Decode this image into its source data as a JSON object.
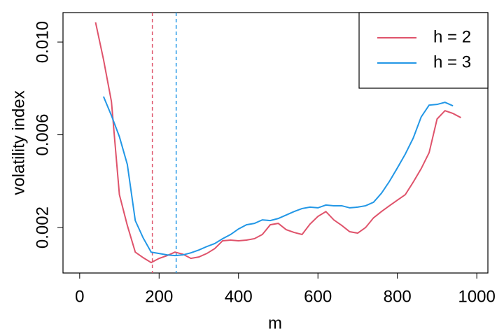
{
  "chart_data": {
    "type": "line",
    "xlabel": "m",
    "ylabel": "volatility index",
    "xlim": [
      -42,
      1028
    ],
    "ylim": [
      4e-05,
      0.01127
    ],
    "xticks": [
      0,
      200,
      400,
      600,
      800,
      1000
    ],
    "yticks": [
      {
        "value": 0.002,
        "label": "0.002"
      },
      {
        "value": 0.006,
        "label": "0.006"
      },
      {
        "value": 0.01,
        "label": "0.010"
      }
    ],
    "legend": "top-right",
    "vlines": [
      {
        "value": 183,
        "color": "#DF536B"
      },
      {
        "value": 243,
        "color": "#2297E6"
      }
    ],
    "series": [
      {
        "name": "h = 2",
        "color": "#DF536B",
        "x": [
          40,
          60,
          80,
          100,
          120,
          140,
          160,
          180,
          200,
          220,
          240,
          260,
          280,
          300,
          320,
          340,
          360,
          380,
          400,
          420,
          440,
          460,
          480,
          500,
          520,
          540,
          560,
          580,
          600,
          620,
          640,
          660,
          680,
          700,
          720,
          740,
          760,
          780,
          800,
          820,
          840,
          860,
          880,
          900,
          920,
          940,
          960
        ],
        "values": [
          0.01085,
          0.00925,
          0.00743,
          0.00342,
          0.00209,
          0.00094,
          0.0007,
          0.00049,
          0.00067,
          0.00079,
          0.00094,
          0.00085,
          0.00067,
          0.00073,
          0.00088,
          0.00109,
          0.00143,
          0.00146,
          0.00143,
          0.00146,
          0.00152,
          0.0017,
          0.00212,
          0.00218,
          0.00191,
          0.00179,
          0.0017,
          0.00215,
          0.00248,
          0.00269,
          0.00233,
          0.00209,
          0.00182,
          0.00176,
          0.002,
          0.00242,
          0.00269,
          0.00294,
          0.00318,
          0.00342,
          0.00396,
          0.00454,
          0.00523,
          0.00668,
          0.00704,
          0.00692,
          0.00674
        ]
      },
      {
        "name": "h = 3",
        "color": "#2297E6",
        "x": [
          60,
          80,
          100,
          120,
          140,
          160,
          180,
          200,
          220,
          240,
          260,
          280,
          300,
          320,
          340,
          360,
          380,
          400,
          420,
          440,
          460,
          480,
          500,
          520,
          540,
          560,
          580,
          600,
          620,
          640,
          660,
          680,
          700,
          720,
          740,
          760,
          780,
          800,
          820,
          840,
          860,
          880,
          900,
          920,
          940
        ],
        "values": [
          0.00765,
          0.00683,
          0.00592,
          0.00472,
          0.0023,
          0.00155,
          0.00094,
          0.00088,
          0.00082,
          0.00079,
          0.00082,
          0.00091,
          0.00103,
          0.00118,
          0.00131,
          0.00152,
          0.0017,
          0.00194,
          0.00212,
          0.00218,
          0.00233,
          0.0023,
          0.00239,
          0.00254,
          0.00269,
          0.00282,
          0.00288,
          0.00285,
          0.00297,
          0.00294,
          0.00294,
          0.00285,
          0.00288,
          0.00294,
          0.00309,
          0.00348,
          0.00399,
          0.00457,
          0.00517,
          0.00586,
          0.00677,
          0.00728,
          0.00731,
          0.0074,
          0.00725
        ]
      }
    ]
  }
}
